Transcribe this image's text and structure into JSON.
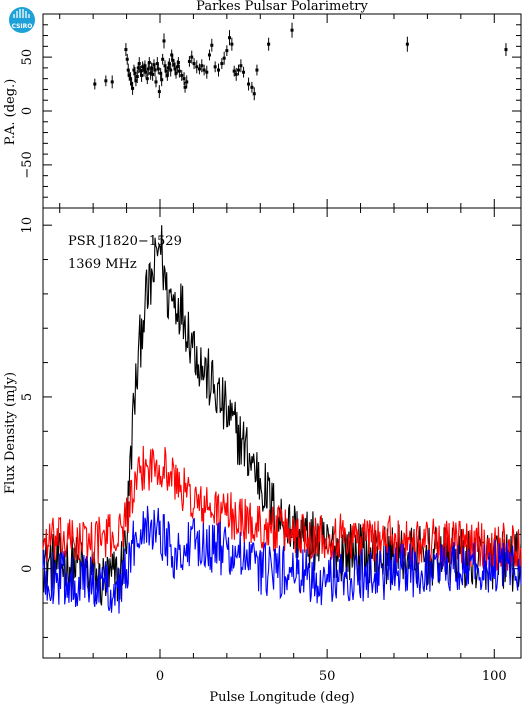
{
  "header": {
    "title": "Parkes Pulsar Polarimetry",
    "logo_text": "CSIRO"
  },
  "chart_data": [
    {
      "type": "scatter",
      "panel": "position-angle",
      "ylabel": "P.A. (deg.)",
      "xlim": [
        -35,
        108
      ],
      "ylim": [
        -90,
        90
      ],
      "yticks": [
        -50,
        0,
        50
      ],
      "ytick_labels": [
        "−50",
        "0",
        "50"
      ],
      "points": [
        [
          -19.5,
          25,
          5
        ],
        [
          -16.2,
          28,
          5
        ],
        [
          -14.3,
          27,
          6
        ],
        [
          -10.2,
          57,
          6
        ],
        [
          -9.8,
          48,
          5
        ],
        [
          -9.5,
          38,
          6
        ],
        [
          -9.2,
          33,
          5
        ],
        [
          -8.8,
          30,
          6
        ],
        [
          -8.5,
          25,
          5
        ],
        [
          -8.2,
          21,
          6
        ],
        [
          -7.8,
          38,
          5
        ],
        [
          -7.5,
          35,
          6
        ],
        [
          -7.2,
          28,
          5
        ],
        [
          -6.8,
          32,
          6
        ],
        [
          -6.5,
          40,
          5
        ],
        [
          -6.2,
          44,
          6
        ],
        [
          -5.8,
          37,
          5
        ],
        [
          -5.5,
          33,
          6
        ],
        [
          -5.2,
          41,
          5
        ],
        [
          -4.8,
          38,
          6
        ],
        [
          -4.5,
          42,
          5
        ],
        [
          -4.2,
          36,
          6
        ],
        [
          -3.8,
          30,
          5
        ],
        [
          -3.5,
          39,
          6
        ],
        [
          -3.2,
          45,
          5
        ],
        [
          -2.8,
          35,
          6
        ],
        [
          -2.5,
          40,
          5
        ],
        [
          -2.2,
          34,
          6
        ],
        [
          -1.8,
          43,
          5
        ],
        [
          -1.5,
          38,
          6
        ],
        [
          -1.2,
          27,
          5
        ],
        [
          -0.8,
          44,
          6
        ],
        [
          -0.5,
          39,
          5
        ],
        [
          -0.2,
          18,
          6
        ],
        [
          0.2,
          35,
          5
        ],
        [
          0.5,
          29,
          6
        ],
        [
          0.8,
          48,
          5
        ],
        [
          1.2,
          65,
          7
        ],
        [
          1.5,
          42,
          5
        ],
        [
          1.8,
          37,
          6
        ],
        [
          2.2,
          33,
          5
        ],
        [
          2.5,
          40,
          6
        ],
        [
          2.8,
          44,
          5
        ],
        [
          3.2,
          38,
          6
        ],
        [
          3.5,
          52,
          5
        ],
        [
          3.8,
          47,
          6
        ],
        [
          4.2,
          43,
          5
        ],
        [
          4.5,
          39,
          6
        ],
        [
          4.8,
          35,
          5
        ],
        [
          5.2,
          41,
          6
        ],
        [
          5.5,
          45,
          5
        ],
        [
          5.8,
          37,
          6
        ],
        [
          6.5,
          33,
          5
        ],
        [
          7.2,
          30,
          6
        ],
        [
          7.5,
          22,
          5
        ],
        [
          8.0,
          27,
          6
        ],
        [
          8.8,
          46,
          5
        ],
        [
          9.5,
          50,
          6
        ],
        [
          10.2,
          44,
          5
        ],
        [
          11.0,
          41,
          6
        ],
        [
          11.8,
          39,
          5
        ],
        [
          12.5,
          42,
          6
        ],
        [
          13.2,
          38,
          5
        ],
        [
          14.0,
          36,
          6
        ],
        [
          14.8,
          52,
          5
        ],
        [
          15.5,
          61,
          6
        ],
        [
          16.5,
          41,
          5
        ],
        [
          17.5,
          38,
          6
        ],
        [
          18.5,
          44,
          5
        ],
        [
          19.2,
          49,
          6
        ],
        [
          20.0,
          56,
          5
        ],
        [
          20.8,
          68,
          7
        ],
        [
          21.5,
          62,
          6
        ],
        [
          22.2,
          37,
          5
        ],
        [
          22.8,
          34,
          6
        ],
        [
          23.5,
          38,
          5
        ],
        [
          24.2,
          42,
          6
        ],
        [
          25.0,
          36,
          5
        ],
        [
          26.5,
          25,
          6
        ],
        [
          27.5,
          22,
          5
        ],
        [
          28.2,
          16,
          6
        ],
        [
          29.0,
          38,
          5
        ],
        [
          32.5,
          62,
          6
        ],
        [
          39.5,
          75,
          7
        ],
        [
          74.0,
          62,
          7
        ],
        [
          103.5,
          57,
          6
        ]
      ]
    },
    {
      "type": "line",
      "panel": "profile",
      "title": "PSR J1820−1529",
      "subtitle": "1369 MHz",
      "xlabel": "Pulse Longitude (deg)",
      "ylabel": "Flux Density (mJy)",
      "xlim": [
        -35,
        108
      ],
      "ylim": [
        -2.6,
        10.5
      ],
      "xticks": [
        0,
        50,
        100
      ],
      "xtick_labels": [
        "0",
        "50",
        "100"
      ],
      "yticks": [
        0,
        5,
        10
      ],
      "ytick_labels": [
        "0",
        "5",
        "10"
      ],
      "series": [
        {
          "color": "#000000",
          "knots": [
            [
              -35,
              0.2
            ],
            [
              -25,
              0.1
            ],
            [
              -18,
              -0.4
            ],
            [
              -12,
              -0.2
            ],
            [
              -10,
              1.0
            ],
            [
              -8,
              4.5
            ],
            [
              -5,
              7.5
            ],
            [
              -2,
              8.5
            ],
            [
              0,
              9.6
            ],
            [
              2,
              8.0
            ],
            [
              6,
              7.7
            ],
            [
              12,
              6.0
            ],
            [
              20,
              4.5
            ],
            [
              25,
              3.6
            ],
            [
              30,
              2.6
            ],
            [
              35,
              1.5
            ],
            [
              45,
              0.8
            ],
            [
              55,
              0.5
            ],
            [
              70,
              0.4
            ],
            [
              90,
              0.3
            ],
            [
              108,
              0.2
            ]
          ],
          "noise": 0.9
        },
        {
          "color": "#ff0000",
          "knots": [
            [
              -35,
              0.8
            ],
            [
              -20,
              0.8
            ],
            [
              -12,
              1.0
            ],
            [
              -10,
              1.6
            ],
            [
              -5,
              2.9
            ],
            [
              0,
              3.1
            ],
            [
              5,
              2.5
            ],
            [
              12,
              1.8
            ],
            [
              20,
              1.6
            ],
            [
              30,
              1.2
            ],
            [
              45,
              1.0
            ],
            [
              60,
              0.9
            ],
            [
              80,
              0.8
            ],
            [
              108,
              0.6
            ]
          ],
          "noise": 0.7
        },
        {
          "color": "#0000ff",
          "knots": [
            [
              -35,
              -0.2
            ],
            [
              -20,
              -0.4
            ],
            [
              -12,
              -0.6
            ],
            [
              -10,
              0.0
            ],
            [
              -5,
              1.5
            ],
            [
              0,
              1.1
            ],
            [
              5,
              0.4
            ],
            [
              12,
              0.8
            ],
            [
              18,
              0.6
            ],
            [
              30,
              0.0
            ],
            [
              50,
              -0.3
            ],
            [
              70,
              -0.1
            ],
            [
              90,
              0.1
            ],
            [
              108,
              0.0
            ]
          ],
          "noise": 0.8
        }
      ]
    }
  ]
}
